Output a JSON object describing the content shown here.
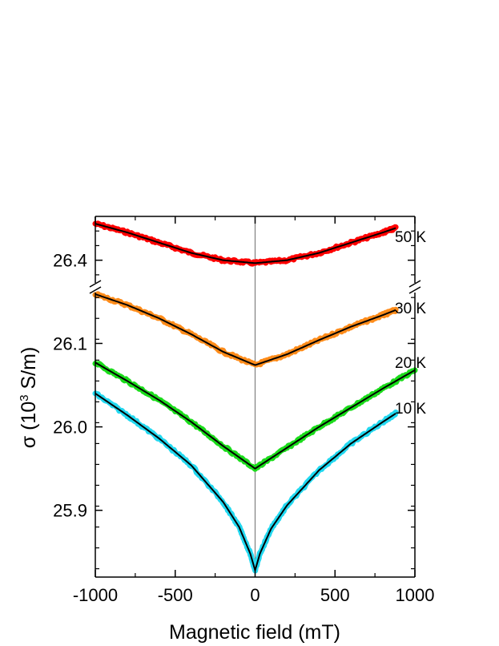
{
  "chart_data": {
    "type": "line",
    "xlabel": "Magnetic field (mT)",
    "ylabel_main": "σ (10",
    "ylabel_sup": "3",
    "ylabel_tail": " S/m)",
    "xlim": [
      -1000,
      1000
    ],
    "x_ticks": [
      -1000,
      -500,
      0,
      500,
      1000
    ],
    "x_tick_labels": [
      "-1000",
      "-500",
      "0",
      "500",
      "1000"
    ],
    "y_axis_broken": true,
    "y_tick_labels_lower": [
      "25.9",
      "26.0",
      "26.1"
    ],
    "y_tick_labels_upper": [
      "26.4"
    ],
    "y_lower_range": [
      25.82,
      26.16
    ],
    "y_upper_range": [
      26.385,
      26.43
    ],
    "zero_line": true,
    "grid": false,
    "series": [
      {
        "name": "50 K",
        "color": "#ff0000",
        "fit_color": "#000000",
        "segment": "upper",
        "x": [
          -1000,
          -800,
          -600,
          -400,
          -200,
          0,
          200,
          400,
          600,
          800,
          880
        ],
        "y": [
          26.425,
          26.419,
          26.412,
          26.405,
          26.4,
          26.398,
          26.4,
          26.405,
          26.412,
          26.419,
          26.422
        ]
      },
      {
        "name": "30 K",
        "color": "#ff8c1a",
        "fit_color": "#000000",
        "segment": "lower",
        "x": [
          -1000,
          -800,
          -600,
          -400,
          -200,
          0,
          200,
          400,
          600,
          800,
          880
        ],
        "y": [
          26.159,
          26.146,
          26.13,
          26.111,
          26.09,
          26.074,
          26.087,
          26.104,
          26.12,
          26.134,
          26.14
        ]
      },
      {
        "name": "20 K",
        "color": "#1bdc1b",
        "fit_color": "#000000",
        "segment": "lower",
        "x": [
          -1000,
          -800,
          -600,
          -400,
          -200,
          0,
          200,
          400,
          600,
          800,
          1000
        ],
        "y": [
          26.077,
          26.055,
          26.032,
          26.006,
          25.977,
          25.95,
          25.975,
          26.0,
          26.023,
          26.046,
          26.068
        ]
      },
      {
        "name": "10 K",
        "color": "#22d8f0",
        "fit_color": "#000000",
        "segment": "lower",
        "x": [
          -1000,
          -800,
          -600,
          -400,
          -200,
          -100,
          -30,
          0,
          30,
          100,
          200,
          400,
          600,
          800,
          880
        ],
        "y": [
          26.04,
          26.014,
          25.986,
          25.954,
          25.91,
          25.88,
          25.848,
          25.828,
          25.848,
          25.878,
          25.906,
          25.948,
          25.98,
          26.006,
          26.016
        ]
      }
    ],
    "annotations": [
      "50 K",
      "30 K",
      "20 K",
      "10 K"
    ]
  }
}
